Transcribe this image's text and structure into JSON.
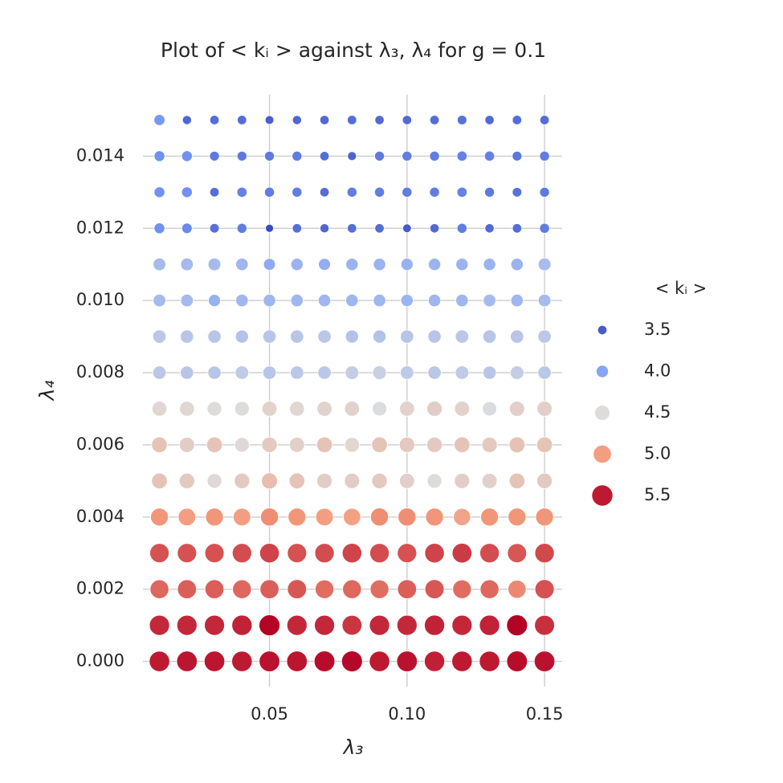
{
  "chart_data": {
    "type": "scatter",
    "title": "Plot of < kᵢ > against λ₃, λ₄ for g = 0.1",
    "x_label": "λ₃",
    "y_label": "λ₄",
    "x": [
      0.01,
      0.02,
      0.03,
      0.04,
      0.05,
      0.06,
      0.07,
      0.08,
      0.09,
      0.1,
      0.11,
      0.12,
      0.13,
      0.14,
      0.15
    ],
    "y": [
      0,
      0.001,
      0.002,
      0.003,
      0.004,
      0.005,
      0.006,
      0.007,
      0.008,
      0.009,
      0.01,
      0.011,
      0.012,
      0.013,
      0.014,
      0.015
    ],
    "values": [
      [
        5.5,
        5.52,
        5.52,
        5.5,
        5.53,
        5.52,
        5.55,
        5.57,
        5.5,
        5.53,
        5.48,
        5.5,
        5.5,
        5.55,
        5.53
      ],
      [
        5.45,
        5.45,
        5.45,
        5.47,
        5.58,
        5.45,
        5.45,
        5.4,
        5.45,
        5.45,
        5.47,
        5.45,
        5.47,
        5.58,
        5.42
      ],
      [
        5.22,
        5.25,
        5.25,
        5.22,
        5.25,
        5.28,
        5.2,
        5.22,
        5.2,
        5.25,
        5.28,
        5.2,
        5.22,
        5.1,
        5.3
      ],
      [
        5.3,
        5.3,
        5.3,
        5.32,
        5.35,
        5.3,
        5.32,
        5.35,
        5.32,
        5.3,
        5.35,
        5.38,
        5.32,
        5.28,
        5.33
      ],
      [
        5.05,
        5.0,
        5.05,
        5.0,
        5.08,
        5.05,
        5.0,
        4.98,
        5.08,
        5.08,
        5.05,
        4.95,
        5.05,
        5.05,
        5.05
      ],
      [
        4.7,
        4.65,
        4.52,
        4.65,
        4.75,
        4.7,
        4.62,
        4.62,
        4.65,
        4.6,
        4.5,
        4.62,
        4.6,
        4.7,
        4.65
      ],
      [
        4.7,
        4.62,
        4.7,
        4.52,
        4.65,
        4.6,
        4.7,
        4.55,
        4.7,
        4.65,
        4.65,
        4.7,
        4.65,
        4.72,
        4.7
      ],
      [
        4.55,
        4.55,
        4.5,
        4.5,
        4.58,
        4.55,
        4.58,
        4.58,
        4.48,
        4.58,
        4.62,
        4.58,
        4.47,
        4.6,
        4.6
      ],
      [
        4.3,
        4.28,
        4.28,
        4.32,
        4.28,
        4.3,
        4.3,
        4.35,
        4.38,
        4.32,
        4.3,
        4.32,
        4.28,
        4.35,
        4.3
      ],
      [
        4.3,
        4.28,
        4.28,
        4.25,
        4.28,
        4.28,
        4.3,
        4.25,
        4.25,
        4.28,
        4.28,
        4.3,
        4.28,
        4.28,
        4.3
      ],
      [
        4.18,
        4.18,
        4.1,
        4.15,
        4.15,
        4.15,
        4.15,
        4.15,
        4.15,
        4.12,
        4.15,
        4.15,
        4.18,
        4.15,
        4.18
      ],
      [
        4.18,
        4.18,
        4.18,
        4.15,
        4.05,
        4.12,
        4.08,
        4.12,
        4.12,
        4.1,
        4.12,
        4.12,
        4.12,
        4.12,
        4.2
      ],
      [
        3.85,
        3.8,
        3.65,
        3.72,
        3.4,
        3.62,
        3.58,
        3.62,
        3.62,
        3.5,
        3.6,
        3.72,
        3.6,
        3.62,
        3.72
      ],
      [
        3.85,
        3.85,
        3.62,
        3.75,
        3.72,
        3.72,
        3.62,
        3.72,
        3.72,
        3.72,
        3.72,
        3.75,
        3.7,
        3.65,
        3.7
      ],
      [
        3.85,
        3.85,
        3.7,
        3.7,
        3.7,
        3.72,
        3.62,
        3.55,
        3.7,
        3.72,
        3.72,
        3.75,
        3.75,
        3.68,
        3.72
      ],
      [
        3.9,
        3.58,
        3.62,
        3.62,
        3.52,
        3.58,
        3.6,
        3.62,
        3.6,
        3.6,
        3.62,
        3.65,
        3.6,
        3.62,
        3.62
      ]
    ],
    "colormap": "coolwarm",
    "xlim": [
      0.004,
      0.1564
    ],
    "ylim": [
      -0.0007,
      0.0157
    ],
    "xticks": [
      0.05,
      {
        "value": 0.1,
        "label": "0.10"
      },
      0.15
    ],
    "yticks": [
      {
        "value": 0,
        "label": "0.000"
      },
      0.002,
      0.004,
      0.006,
      0.008,
      {
        "value": 0.01,
        "label": "0.010"
      },
      0.012,
      0.014
    ],
    "grid": true,
    "legend": {
      "title": "< kᵢ >",
      "position": "right",
      "values": [
        3.5,
        {
          "value": 4,
          "label": "4.0"
        },
        4.5,
        {
          "value": 5,
          "label": "5.0"
        },
        5.5
      ]
    }
  }
}
